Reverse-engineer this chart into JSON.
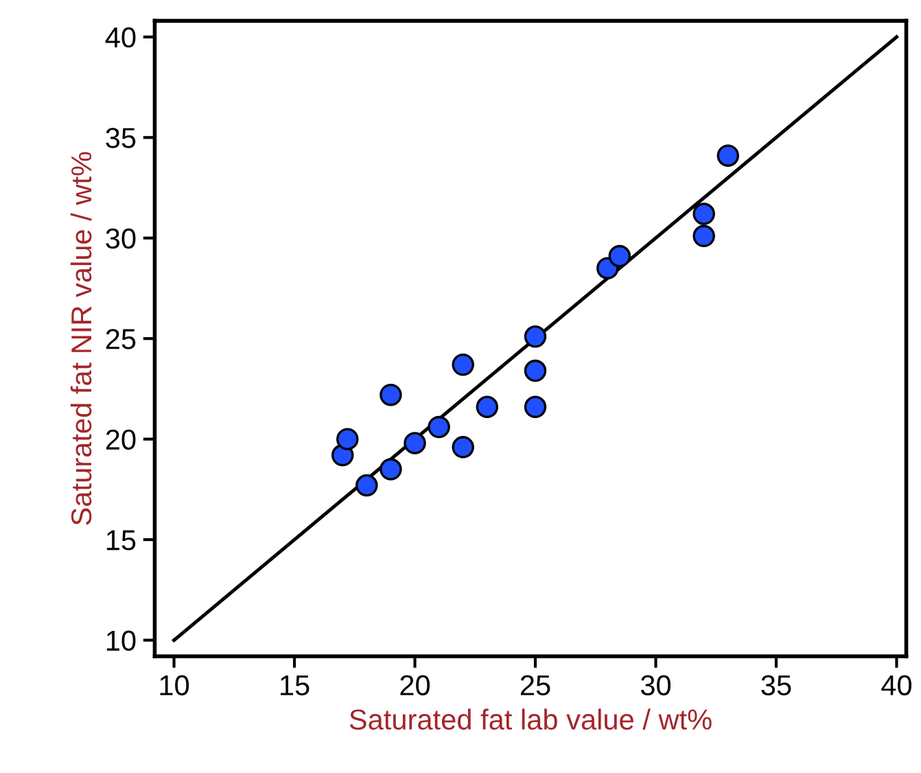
{
  "chart_data": {
    "type": "scatter",
    "xlabel": "Saturated fat lab value / wt%",
    "ylabel": "Saturated fat NIR value / wt%",
    "series": [
      {
        "color": "#1f4fff",
        "marker": "circle",
        "x": [
          17,
          17.2,
          18,
          19,
          19,
          20,
          21,
          22,
          22,
          23,
          25,
          25,
          25,
          28,
          28.5,
          32,
          32,
          33
        ],
        "values": [
          19.2,
          20.0,
          17.7,
          18.5,
          22.2,
          19.8,
          20.6,
          19.6,
          23.7,
          21.6,
          21.6,
          23.4,
          25.1,
          28.5,
          29.1,
          31.2,
          30.1,
          34.1
        ]
      },
      {
        "type": "line",
        "color": "#000000",
        "marker": "none",
        "line_style": "solid",
        "x": [
          10,
          40
        ],
        "values": [
          10,
          40
        ]
      }
    ],
    "xlim": [
      9.2,
      40.4
    ],
    "ylim": [
      9.2,
      40.8
    ],
    "xticks": [
      10,
      15,
      20,
      25,
      30,
      35,
      40
    ],
    "yticks": [
      10,
      15,
      20,
      25,
      30,
      35,
      40
    ],
    "grid": false,
    "legend": false
  }
}
